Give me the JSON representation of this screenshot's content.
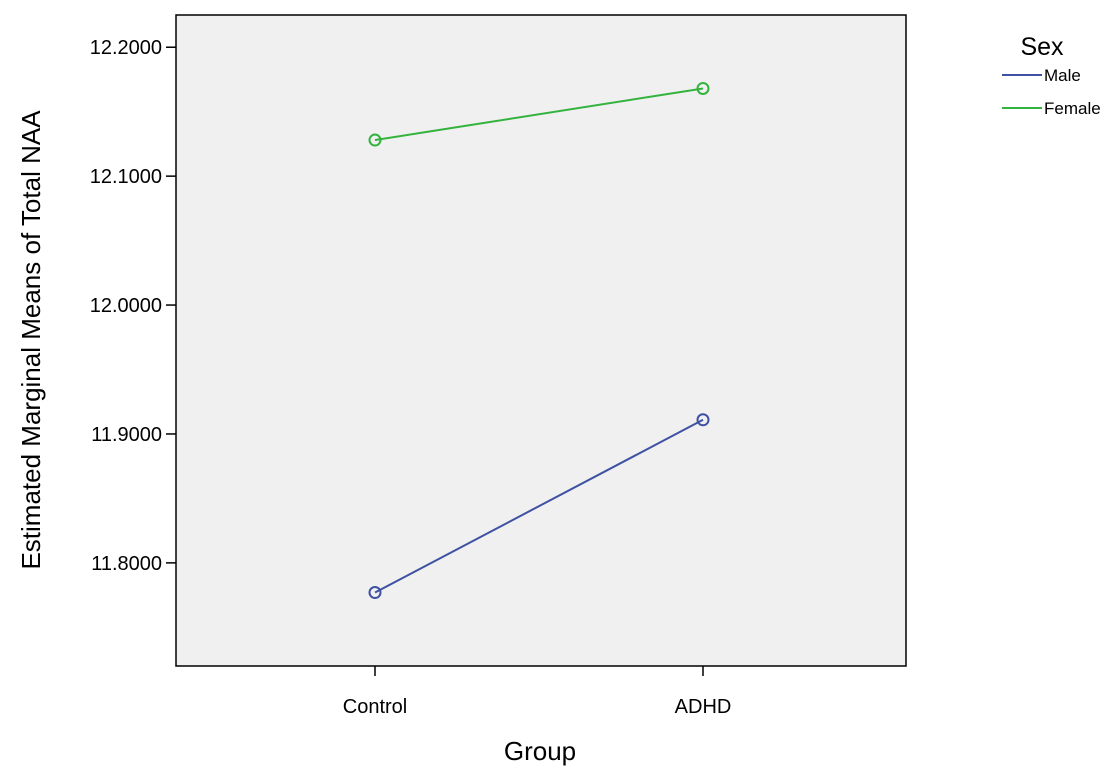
{
  "chart_data": {
    "type": "line",
    "xlabel": "Group",
    "ylabel": "Estimated Marginal Means of Total NAA",
    "categories": [
      "Control",
      "ADHD"
    ],
    "ylim": [
      11.72,
      12.225
    ],
    "yticks": [
      11.8,
      11.9,
      12.0,
      12.1,
      12.2
    ],
    "ytick_labels": [
      "11.8000",
      "11.9000",
      "12.0000",
      "12.1000",
      "12.2000"
    ],
    "legend": {
      "title": "Sex",
      "placement": "top-right outside"
    },
    "plot_background": "#f0f0f0",
    "grid": false,
    "series": [
      {
        "name": "Male",
        "color": "#3f51a3",
        "values": [
          11.777,
          11.911
        ]
      },
      {
        "name": "Female",
        "color": "#33b33d",
        "values": [
          12.128,
          12.168
        ]
      }
    ]
  }
}
